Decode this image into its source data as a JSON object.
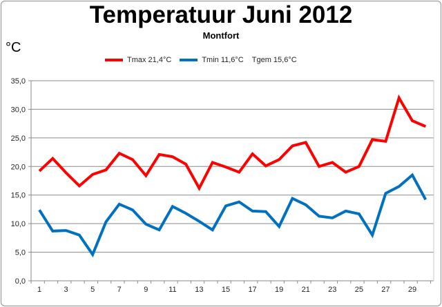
{
  "chart_data": {
    "type": "line",
    "title": "Temperatuur Juni 2012",
    "subtitle": "Montfort",
    "ylabel": "°C",
    "xlabel": "",
    "ylim": [
      0,
      35
    ],
    "yticks": [
      "0,0",
      "5,0",
      "10,0",
      "15,0",
      "20,0",
      "25,0",
      "30,0",
      "35,0"
    ],
    "xtick_labels": [
      "1",
      "3",
      "5",
      "7",
      "9",
      "11",
      "13",
      "15",
      "17",
      "19",
      "21",
      "23",
      "25",
      "27",
      "29"
    ],
    "x": [
      1,
      2,
      3,
      4,
      5,
      6,
      7,
      8,
      9,
      10,
      11,
      12,
      13,
      14,
      15,
      16,
      17,
      18,
      19,
      20,
      21,
      22,
      23,
      24,
      25,
      26,
      27,
      28,
      29,
      30
    ],
    "grid": true,
    "legend_position": "top",
    "series": [
      {
        "name": "Tmax 21,4°C",
        "color": "#ff0000",
        "values": [
          19.2,
          21.4,
          18.9,
          16.6,
          18.6,
          19.4,
          22.3,
          21.2,
          18.4,
          22.1,
          21.7,
          20.4,
          16.2,
          20.7,
          19.9,
          19.0,
          22.2,
          20.1,
          21.2,
          23.6,
          24.2,
          20.0,
          20.7,
          19.0,
          20.0,
          24.7,
          24.4,
          32.0,
          28.0,
          27.0
        ]
      },
      {
        "name": "Tmin 11,6°C",
        "color": "#0070c0",
        "values": [
          12.4,
          8.7,
          8.8,
          8.0,
          4.6,
          10.3,
          13.4,
          12.4,
          9.9,
          8.9,
          13.0,
          11.8,
          10.4,
          8.9,
          13.1,
          13.8,
          12.2,
          12.1,
          9.5,
          14.4,
          13.3,
          11.3,
          11.0,
          12.2,
          11.7,
          8.0,
          15.3,
          16.5,
          18.5,
          14.2
        ]
      }
    ],
    "extra_legend_text": "Tgem 15,6°C"
  }
}
